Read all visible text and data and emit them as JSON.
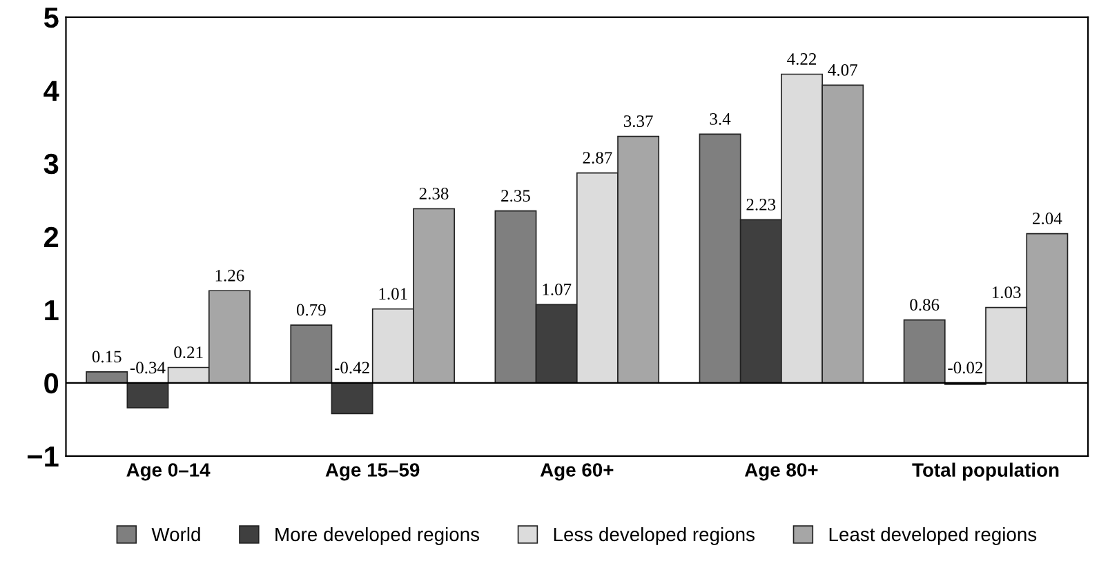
{
  "chart_data": {
    "type": "bar",
    "categories": [
      "Age 0–14",
      "Age 15–59",
      "Age 60+",
      "Age 80+",
      "Total population"
    ],
    "series": [
      {
        "name": "World",
        "color": "#7f7f7f",
        "values": [
          0.15,
          0.79,
          2.35,
          3.4,
          0.86
        ]
      },
      {
        "name": "More developed regions",
        "color": "#3f3f3f",
        "values": [
          -0.34,
          -0.42,
          1.07,
          2.23,
          -0.02
        ]
      },
      {
        "name": "Less developed regions",
        "color": "#dcdcdc",
        "values": [
          0.21,
          1.01,
          2.87,
          4.22,
          1.03
        ]
      },
      {
        "name": "Least developed regions",
        "color": "#a6a6a6",
        "values": [
          1.26,
          2.38,
          3.37,
          4.07,
          2.04
        ]
      }
    ],
    "ylim": [
      -1,
      5
    ],
    "yticks": [
      -1,
      0,
      1,
      2,
      3,
      4,
      5
    ],
    "legend": "bottom",
    "data_labels": true
  }
}
